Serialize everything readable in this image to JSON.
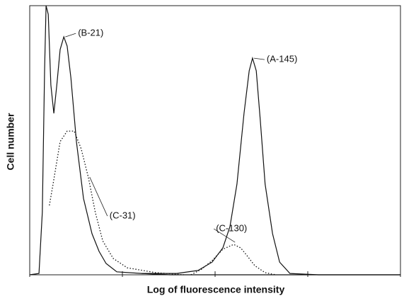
{
  "chart_data": {
    "type": "line",
    "xlabel": "Log of fluorescence intensity",
    "ylabel": "Cell number",
    "xlim": [
      0,
      100
    ],
    "ylim": [
      0,
      100
    ],
    "xticks": [
      0,
      25,
      50,
      75,
      100
    ],
    "color": "#111111",
    "series": [
      {
        "name": "(B-21)",
        "linestyle": "solid",
        "x": [
          0,
          2.5,
          3.4,
          4.0,
          4.4,
          5.0,
          5.7,
          6.5,
          7.3,
          8.2,
          9.2,
          10.1,
          11.1,
          12.6,
          14.5,
          16.8,
          18.7,
          20.6,
          23.5,
          30.2,
          37.8,
          100
        ],
        "values": [
          0,
          0.5,
          23.2,
          75.8,
          100,
          96.8,
          70.5,
          60,
          70.5,
          83.7,
          88.4,
          85,
          73.2,
          49.5,
          28.4,
          15.3,
          8.7,
          4.2,
          1.1,
          0.5,
          0,
          0
        ]
      },
      {
        "name": "(C-31)",
        "linestyle": "dotted",
        "x": [
          5.3,
          6.3,
          8.2,
          10.1,
          12.0,
          13.9,
          15.8,
          17.7,
          19.7,
          22.5,
          26.3,
          34.0,
          41.6
        ],
        "values": [
          25.8,
          33.7,
          49.5,
          53.4,
          53.4,
          46.8,
          36.3,
          23.2,
          12.6,
          6.1,
          2.6,
          0.8,
          0
        ]
      },
      {
        "name": "(A-145)",
        "linestyle": "solid",
        "x": [
          30.2,
          39.7,
          45.4,
          49.2,
          52.1,
          54.0,
          55.9,
          57.8,
          59.2,
          60.1,
          61.1,
          62.2,
          63.5,
          65.5,
          67.4,
          70.2,
          77.9,
          100
        ],
        "values": [
          0.5,
          0.5,
          1.6,
          4.7,
          10,
          17.9,
          33.7,
          60,
          75.8,
          80.5,
          75.8,
          57.4,
          33.7,
          15.3,
          4.7,
          0.5,
          0,
          0
        ]
      },
      {
        "name": "(C-130)",
        "linestyle": "dotted",
        "x": [
          43.5,
          46.4,
          49.2,
          52.1,
          55.0,
          56.9,
          58.8,
          60.7,
          63.5,
          66.4
        ],
        "values": [
          0,
          2.1,
          5.3,
          9.5,
          11.3,
          10,
          6.8,
          3.4,
          0.8,
          0
        ]
      }
    ]
  }
}
